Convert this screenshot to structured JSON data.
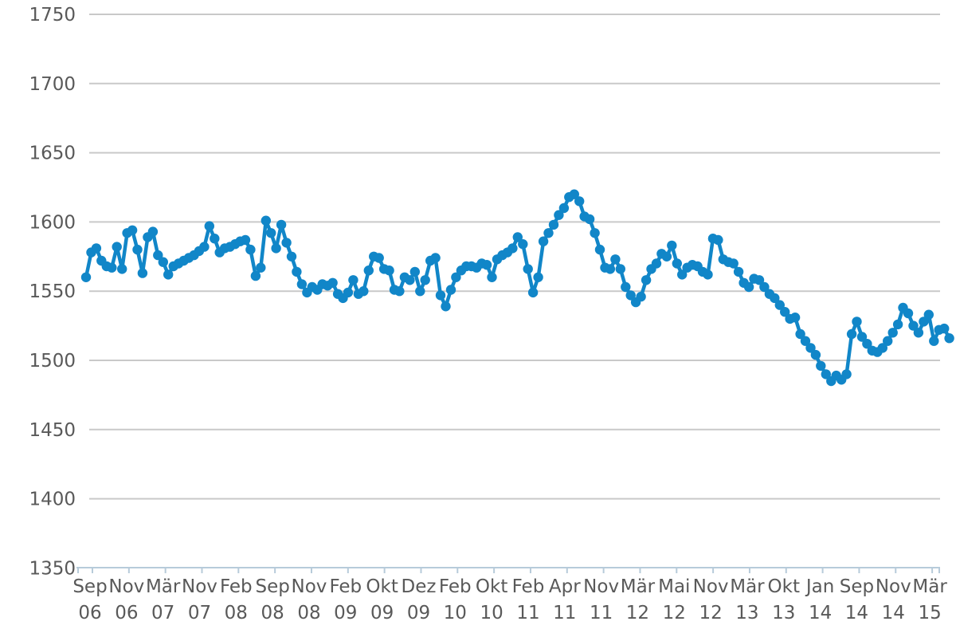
{
  "chart_data": {
    "type": "line",
    "title": "",
    "xlabel": "",
    "ylabel": "",
    "legend_position": "none",
    "grid": "horizontal",
    "marker": "circle",
    "ylim": [
      1350,
      1750
    ],
    "y_ticks": [
      1750,
      1700,
      1650,
      1600,
      1550,
      1500,
      1450,
      1400,
      1350
    ],
    "x_tick_labels": [
      {
        "month": "Sep",
        "year": "06"
      },
      {
        "month": "Nov",
        "year": "06"
      },
      {
        "month": "Mär",
        "year": "07"
      },
      {
        "month": "Nov",
        "year": "07"
      },
      {
        "month": "Feb",
        "year": "08"
      },
      {
        "month": "Sep",
        "year": "08"
      },
      {
        "month": "Nov",
        "year": "08"
      },
      {
        "month": "Feb",
        "year": "09"
      },
      {
        "month": "Okt",
        "year": "09"
      },
      {
        "month": "Dez",
        "year": "09"
      },
      {
        "month": "Feb",
        "year": "10"
      },
      {
        "month": "Okt",
        "year": "10"
      },
      {
        "month": "Feb",
        "year": "11"
      },
      {
        "month": "Apr",
        "year": "11"
      },
      {
        "month": "Nov",
        "year": "11"
      },
      {
        "month": "Mär",
        "year": "12"
      },
      {
        "month": "Mai",
        "year": "12"
      },
      {
        "month": "Nov",
        "year": "12"
      },
      {
        "month": "Mär",
        "year": "13"
      },
      {
        "month": "Okt",
        "year": "13"
      },
      {
        "month": "Jan",
        "year": "14"
      },
      {
        "month": "Sep",
        "year": "14"
      },
      {
        "month": "Nov",
        "year": "14"
      },
      {
        "month": "Mär",
        "year": "15"
      }
    ],
    "series": [
      {
        "name": "",
        "values": [
          1560,
          1578,
          1581,
          1572,
          1568,
          1567,
          1582,
          1566,
          1592,
          1594,
          1580,
          1563,
          1589,
          1593,
          1576,
          1571,
          1562,
          1568,
          1570,
          1572,
          1574,
          1576,
          1579,
          1582,
          1597,
          1588,
          1578,
          1581,
          1582,
          1584,
          1586,
          1587,
          1580,
          1561,
          1567,
          1601,
          1592,
          1581,
          1598,
          1585,
          1575,
          1564,
          1555,
          1549,
          1553,
          1551,
          1555,
          1554,
          1556,
          1548,
          1545,
          1549,
          1558,
          1548,
          1550,
          1565,
          1575,
          1574,
          1566,
          1565,
          1551,
          1550,
          1560,
          1558,
          1564,
          1550,
          1558,
          1572,
          1574,
          1547,
          1539,
          1551,
          1560,
          1565,
          1568,
          1568,
          1567,
          1570,
          1569,
          1560,
          1573,
          1576,
          1578,
          1581,
          1589,
          1584,
          1566,
          1549,
          1560,
          1586,
          1592,
          1598,
          1605,
          1610,
          1618,
          1620,
          1615,
          1604,
          1602,
          1592,
          1580,
          1567,
          1566,
          1573,
          1566,
          1553,
          1547,
          1542,
          1546,
          1558,
          1566,
          1570,
          1577,
          1575,
          1583,
          1570,
          1562,
          1567,
          1569,
          1568,
          1564,
          1562,
          1588,
          1587,
          1573,
          1571,
          1570,
          1564,
          1556,
          1553,
          1559,
          1558,
          1553,
          1548,
          1545,
          1540,
          1535,
          1530,
          1531,
          1519,
          1514,
          1509,
          1504,
          1496,
          1490,
          1485,
          1489,
          1486,
          1490,
          1519,
          1528,
          1517,
          1512,
          1507,
          1506,
          1509,
          1514,
          1520,
          1526,
          1538,
          1534,
          1525,
          1520,
          1528,
          1533,
          1514,
          1522,
          1523,
          1516
        ]
      }
    ]
  },
  "style": {
    "series_color": "#1186c8",
    "grid_color": "#c9c9c9",
    "axis_color": "#b7cbda",
    "label_color": "#595959",
    "background_color": "#ffffff"
  }
}
